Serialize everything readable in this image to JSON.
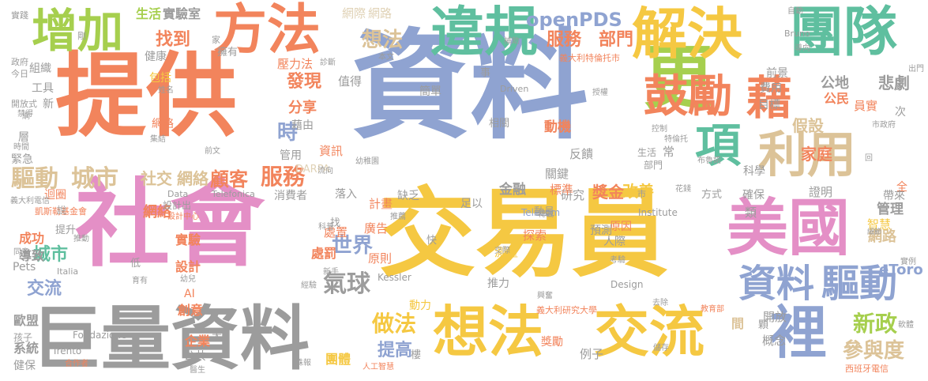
{
  "palette": {
    "gold": "#F5C842",
    "salmon": "#F2845C",
    "blue": "#8FA3D1",
    "pink": "#E48FC6",
    "green": "#A6CF4E",
    "tan": "#DCC398",
    "gray": "#9C9C9C",
    "teal": "#5FBF9F",
    "beige": "#E0D2B6",
    "lightgray": "#BEBEBE"
  },
  "words": [
    {
      "text": "資料",
      "color": "blue"
    },
    {
      "text": "提供",
      "color": "salmon"
    },
    {
      "text": "社會",
      "color": "pink"
    },
    {
      "text": "交易員",
      "color": "gold"
    },
    {
      "text": "巨量資料",
      "color": "gray"
    },
    {
      "text": "更",
      "color": "green"
    },
    {
      "text": "團隊",
      "color": "teal"
    },
    {
      "text": "美國",
      "color": "pink"
    },
    {
      "text": "想法",
      "color": "gold"
    },
    {
      "text": "交流",
      "color": "gold"
    },
    {
      "text": "方法",
      "color": "salmon"
    },
    {
      "text": "違規",
      "color": "teal"
    },
    {
      "text": "解決",
      "color": "gold"
    },
    {
      "text": "增加",
      "color": "green"
    },
    {
      "text": "利用",
      "color": "tan"
    },
    {
      "text": "項",
      "color": "teal"
    },
    {
      "text": "鼓勵",
      "color": "salmon"
    },
    {
      "text": "裡",
      "color": "blue"
    },
    {
      "text": "資料",
      "color": "blue"
    },
    {
      "text": "驅動",
      "color": "blue"
    },
    {
      "text": "openPDS",
      "color": "blue"
    },
    {
      "text": "想法",
      "color": "tan"
    },
    {
      "text": "服務",
      "color": "salmon"
    },
    {
      "text": "部門",
      "color": "salmon"
    },
    {
      "text": "找到",
      "color": "salmon"
    },
    {
      "text": "發現",
      "color": "salmon"
    },
    {
      "text": "驅動",
      "color": "tan"
    },
    {
      "text": "城市",
      "color": "tan"
    },
    {
      "text": "社交",
      "color": "tan"
    },
    {
      "text": "網絡",
      "color": "tan"
    },
    {
      "text": "顧客",
      "color": "salmon"
    },
    {
      "text": "服務",
      "color": "salmon"
    },
    {
      "text": "藉",
      "color": "salmon"
    },
    {
      "text": "時",
      "color": "blue"
    },
    {
      "text": "世界",
      "color": "blue"
    },
    {
      "text": "氣球",
      "color": "gray"
    },
    {
      "text": "做法",
      "color": "gold"
    },
    {
      "text": "提高",
      "color": "blue"
    },
    {
      "text": "新政",
      "color": "green"
    },
    {
      "text": "參與度",
      "color": "tan"
    },
    {
      "text": "交流",
      "color": "blue"
    },
    {
      "text": "城市",
      "color": "teal"
    },
    {
      "text": "悲劇",
      "color": "gray"
    },
    {
      "text": "假設",
      "color": "tan"
    },
    {
      "text": "家庭",
      "color": "salmon"
    },
    {
      "text": "改善",
      "color": "gold"
    },
    {
      "text": "獎金",
      "color": "salmon"
    },
    {
      "text": "生活",
      "color": "green"
    },
    {
      "text": "實驗室",
      "color": "gray"
    },
    {
      "text": "網際",
      "color": "beige"
    },
    {
      "text": "網路",
      "color": "beige"
    },
    {
      "text": "分享",
      "color": "salmon"
    },
    {
      "text": "網絡",
      "color": "salmon"
    },
    {
      "text": "成功",
      "color": "salmon"
    },
    {
      "text": "導致",
      "color": "gray"
    },
    {
      "text": "歐盟",
      "color": "gray"
    },
    {
      "text": "系統",
      "color": "gray"
    },
    {
      "text": "健保",
      "color": "gray"
    },
    {
      "text": "處罰",
      "color": "salmon"
    },
    {
      "text": "網路",
      "color": "tan"
    },
    {
      "text": "eToro",
      "color": "blue"
    },
    {
      "text": "公地",
      "color": "gray"
    },
    {
      "text": "公民",
      "color": "salmon"
    },
    {
      "text": "動機",
      "color": "salmon"
    },
    {
      "text": "反饋",
      "color": "gray"
    },
    {
      "text": "關鍵",
      "color": "gray"
    },
    {
      "text": "研究",
      "color": "gray"
    },
    {
      "text": "金融",
      "color": "gray"
    },
    {
      "text": "標準",
      "color": "salmon"
    },
    {
      "text": "管理",
      "color": "gray"
    },
    {
      "text": "實驗",
      "color": "salmon"
    },
    {
      "text": "設計",
      "color": "salmon"
    },
    {
      "text": "創意",
      "color": "salmon"
    },
    {
      "text": "企業",
      "color": "salmon"
    },
    {
      "text": "團體",
      "color": "gold"
    },
    {
      "text": "例子",
      "color": "gray"
    },
    {
      "text": "間",
      "color": "tan"
    },
    {
      "text": "概念",
      "color": "gray"
    },
    {
      "text": "開放",
      "color": "gray"
    },
    {
      "text": "證明",
      "color": "gray"
    },
    {
      "text": "智慧",
      "color": "gold"
    },
    {
      "text": "全",
      "color": "salmon"
    },
    {
      "text": "次",
      "color": "gray"
    },
    {
      "text": "員實",
      "color": "salmon"
    },
    {
      "text": "費用",
      "color": "gray"
    },
    {
      "text": "目標",
      "color": "gray"
    },
    {
      "text": "前景",
      "color": "gray"
    },
    {
      "text": "計畫",
      "color": "salmon"
    },
    {
      "text": "廣告",
      "color": "salmon"
    },
    {
      "text": "處置",
      "color": "salmon"
    },
    {
      "text": "探索",
      "color": "salmon"
    },
    {
      "text": "測量",
      "color": "gold"
    },
    {
      "text": "原則",
      "color": "salmon"
    },
    {
      "text": "推力",
      "color": "gray"
    },
    {
      "text": "動力",
      "color": "gold"
    },
    {
      "text": "獎勵",
      "color": "salmon"
    },
    {
      "text": "原因",
      "color": "salmon"
    },
    {
      "text": "人際",
      "color": "gray"
    },
    {
      "text": "預測",
      "color": "gray"
    },
    {
      "text": "足以",
      "color": "gray"
    },
    {
      "text": "缺乏",
      "color": "gray"
    },
    {
      "text": "落入",
      "color": "gray"
    },
    {
      "text": "管用",
      "color": "gray"
    },
    {
      "text": "資訊",
      "color": "salmon"
    },
    {
      "text": "值得",
      "color": "gray"
    },
    {
      "text": "壓力法",
      "color": "salmon"
    },
    {
      "text": "包括",
      "color": "gold"
    },
    {
      "text": "工具",
      "color": "gray"
    },
    {
      "text": "組織",
      "color": "gray"
    },
    {
      "text": "新",
      "color": "gray"
    },
    {
      "text": "健康",
      "color": "gray"
    },
    {
      "text": "擁有",
      "color": "gray"
    },
    {
      "text": "網絡",
      "color": "salmon"
    },
    {
      "text": "緊急",
      "color": "gray"
    },
    {
      "text": "迴圈",
      "color": "salmon"
    },
    {
      "text": "藉由",
      "color": "gray"
    },
    {
      "text": "簡單",
      "color": "gray"
    },
    {
      "text": "層",
      "color": "gray"
    },
    {
      "text": "Pets",
      "color": "gray"
    },
    {
      "text": "AI",
      "color": "salmon"
    },
    {
      "text": "Data",
      "color": "gray"
    },
    {
      "text": "DARPA",
      "color": "beige"
    },
    {
      "text": "Fondazione",
      "color": "gray"
    },
    {
      "text": "Trento",
      "color": "gray"
    },
    {
      "text": "Kessler",
      "color": "gray"
    },
    {
      "text": "Telecom",
      "color": "blue"
    },
    {
      "text": "Institute",
      "color": "gray"
    },
    {
      "text": "Design",
      "color": "gray"
    },
    {
      "text": "Driven",
      "color": "gray"
    },
    {
      "text": "Bruno",
      "color": "gray"
    },
    {
      "text": "Italia",
      "color": "gray"
    },
    {
      "text": "Telefonica",
      "color": "gray"
    },
    {
      "text": "義大利特倫托市",
      "color": "salmon"
    },
    {
      "text": "義大利研究大學",
      "color": "salmon"
    },
    {
      "text": "凱斯勒基金會",
      "color": "salmon"
    },
    {
      "text": "西班牙電信",
      "color": "salmon"
    },
    {
      "text": "義大利電信",
      "color": "gray"
    },
    {
      "text": "設計中心",
      "color": "salmon"
    },
    {
      "text": "人工智慧",
      "color": "salmon"
    },
    {
      "text": "消費者",
      "color": "gray"
    },
    {
      "text": "設計出",
      "color": "gray"
    },
    {
      "text": "公共",
      "color": "gray"
    },
    {
      "text": "方式",
      "color": "gray"
    },
    {
      "text": "確保",
      "color": "gray"
    },
    {
      "text": "帶來",
      "color": "gray"
    },
    {
      "text": "類",
      "color": "gray"
    },
    {
      "text": "常",
      "color": "gray"
    },
    {
      "text": "科學",
      "color": "gray"
    },
    {
      "text": "生活",
      "color": "gray"
    },
    {
      "text": "部門",
      "color": "gray"
    },
    {
      "text": "提升",
      "color": "gray"
    },
    {
      "text": "說",
      "color": "gray"
    },
    {
      "text": "低",
      "color": "gray"
    },
    {
      "text": "太",
      "color": "gray"
    },
    {
      "text": "找",
      "color": "gray"
    },
    {
      "text": "快",
      "color": "gray"
    },
    {
      "text": "樓",
      "color": "gray"
    },
    {
      "text": "顆",
      "color": "gray"
    },
    {
      "text": "事",
      "color": "gray"
    },
    {
      "text": "市",
      "color": "gray"
    },
    {
      "text": "孩子",
      "color": "gray"
    },
    {
      "text": "實踐",
      "color": "gray"
    },
    {
      "text": "剛",
      "color": "gray"
    },
    {
      "text": "家",
      "color": "gray"
    },
    {
      "text": "政府",
      "color": "gray"
    },
    {
      "text": "今日",
      "color": "gray"
    },
    {
      "text": "開放式",
      "color": "gray"
    },
    {
      "text": "禁得",
      "color": "gray"
    },
    {
      "text": "時間",
      "color": "gray"
    },
    {
      "text": "集結",
      "color": "gray"
    },
    {
      "text": "前文",
      "color": "gray"
    },
    {
      "text": "推動",
      "color": "gray"
    },
    {
      "text": "同意",
      "color": "gray"
    },
    {
      "text": "育有",
      "color": "gray"
    },
    {
      "text": "幼兒",
      "color": "gray"
    },
    {
      "text": "醫生",
      "color": "gray"
    },
    {
      "text": "合作者",
      "color": "salmon"
    },
    {
      "text": "蛛報",
      "color": "gray"
    },
    {
      "text": "新手",
      "color": "gray"
    },
    {
      "text": "經驗",
      "color": "gray"
    },
    {
      "text": "興奮",
      "color": "gray"
    },
    {
      "text": "考驗",
      "color": "gray"
    },
    {
      "text": "去除",
      "color": "gray"
    },
    {
      "text": "教育部",
      "color": "salmon"
    },
    {
      "text": "軟體",
      "color": "gray"
    },
    {
      "text": "實例",
      "color": "gray"
    },
    {
      "text": "出門",
      "color": "gray"
    },
    {
      "text": "市政府",
      "color": "gray"
    },
    {
      "text": "布魯諾",
      "color": "gray"
    },
    {
      "text": "細節",
      "color": "gray"
    },
    {
      "text": "回",
      "color": "gray"
    },
    {
      "text": "控制",
      "color": "gray"
    },
    {
      "text": "特倫托",
      "color": "gray"
    },
    {
      "text": "花錢",
      "color": "gray"
    },
    {
      "text": "轉載",
      "color": "gray"
    },
    {
      "text": "推薦",
      "color": "gray"
    },
    {
      "text": "交際",
      "color": "gray"
    },
    {
      "text": "科普",
      "color": "gray"
    },
    {
      "text": "姓名",
      "color": "gray"
    },
    {
      "text": "診斷",
      "color": "gray"
    },
    {
      "text": "補助",
      "color": "gray"
    },
    {
      "text": "本文",
      "color": "gray"
    },
    {
      "text": "授權",
      "color": "gray"
    },
    {
      "text": "自動",
      "color": "gray"
    },
    {
      "text": "導向",
      "color": "gray"
    },
    {
      "text": "流向",
      "color": "gray"
    },
    {
      "text": "幼稚園",
      "color": "gray"
    },
    {
      "text": "相關",
      "color": "gray"
    },
    {
      "text": "動員",
      "color": "gray"
    },
    {
      "text": "儲存",
      "color": "gray"
    },
    {
      "text": "綱",
      "color": "gray"
    }
  ]
}
